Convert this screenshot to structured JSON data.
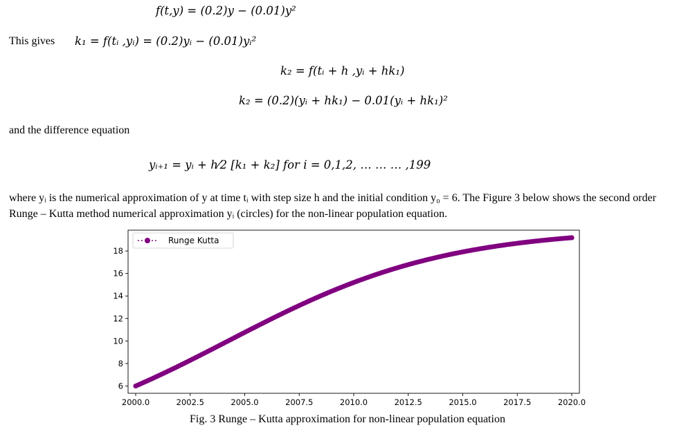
{
  "document": {
    "eq_f": "f(t,y) = (0.2)y − (0.01)y²",
    "this_gives_label": "This gives",
    "eq_k1": "k₁ = f(tᵢ ,yᵢ) = (0.2)yᵢ − (0.01)yᵢ²",
    "eq_k2_def": "k₂ = f(tᵢ + h ,yᵢ + hk₁)",
    "eq_k2": "k₂ = (0.2)(yᵢ + hk₁) − 0.01(yᵢ + hk₁)²",
    "difference_text": "and the difference equation",
    "eq_diff": "yᵢ₊₁ = yᵢ + h⁄2 [k₁ + k₂] for i = 0,1,2, … … … ,199",
    "paragraph_1": "where yᵢ is the numerical approximation of y at time tᵢ with step size h and the initial condition y₀ = 6. The Figure 3 below shows the second order Runge – Kutta  method numerical approximation yᵢ (circles) for the non-linear population equation.",
    "caption": "Fig. 3 Runge – Kutta approximation for non-linear population equation"
  },
  "chart_data": {
    "type": "scatter",
    "title": "",
    "xlabel": "",
    "ylabel": "",
    "xlim": [
      1999.65,
      2020.35
    ],
    "ylim": [
      5.35,
      19.85
    ],
    "xticks": [
      "2000.0",
      "2002.5",
      "2005.0",
      "2007.5",
      "2010.0",
      "2012.5",
      "2015.0",
      "2017.5",
      "2020.0"
    ],
    "yticks": [
      "6",
      "8",
      "10",
      "12",
      "14",
      "16",
      "18"
    ],
    "grid": false,
    "legend_position": "top-left",
    "series": [
      {
        "name": "Runge Kutta",
        "color": "#800080",
        "marker": "circle",
        "linestyle": "dotted",
        "x_start": 2000.0,
        "x_end": 2020.0,
        "points": 200,
        "model": "logistic",
        "y0": 6,
        "growth_rate": 0.2,
        "capacity": 20
      }
    ]
  }
}
